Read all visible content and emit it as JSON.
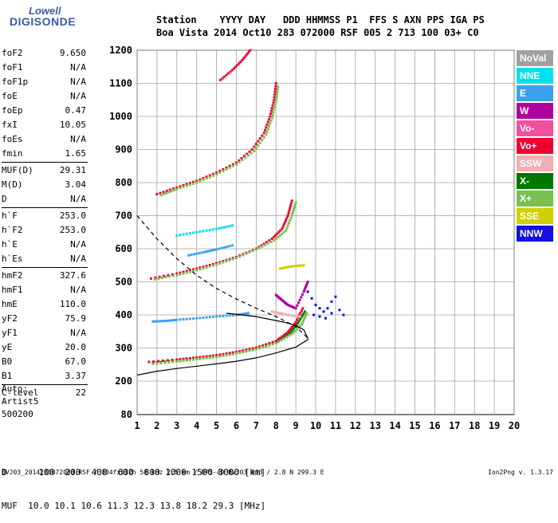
{
  "logo": {
    "top": "Lowell",
    "bottom": "DIGISONDE"
  },
  "header": {
    "line1": "Station    YYYY DAY   DDD HHMMSS P1  FFS S AXN PPS IGA PS",
    "line2": "Boa Vista 2014 Oct10 283 072000 RSF 005 2 713 100 03+ C0"
  },
  "params": [
    {
      "group": [
        {
          "label": "foF2",
          "value": "9.650"
        },
        {
          "label": "foF1",
          "value": "N/A"
        },
        {
          "label": "foF1p",
          "value": "N/A"
        },
        {
          "label": "foE",
          "value": "N/A"
        },
        {
          "label": "foEp",
          "value": "0.47"
        },
        {
          "label": "fxI",
          "value": "10.05"
        },
        {
          "label": "foEs",
          "value": "N/A"
        },
        {
          "label": "fmin",
          "value": "1.65"
        }
      ]
    },
    {
      "group": [
        {
          "label": "MUF(D)",
          "value": "29.31"
        },
        {
          "label": "M(D)",
          "value": "3.04"
        },
        {
          "label": "D",
          "value": "N/A"
        }
      ]
    },
    {
      "group": [
        {
          "label": "h`F",
          "value": "253.0"
        },
        {
          "label": "h`F2",
          "value": "253.0"
        },
        {
          "label": "h`E",
          "value": "N/A"
        },
        {
          "label": "h`Es",
          "value": "N/A"
        }
      ]
    },
    {
      "group": [
        {
          "label": "hmF2",
          "value": "327.6"
        },
        {
          "label": "hmF1",
          "value": "N/A"
        },
        {
          "label": "hmE",
          "value": "110.0"
        },
        {
          "label": "yF2",
          "value": "75.9"
        },
        {
          "label": "yF1",
          "value": "N/A"
        },
        {
          "label": "yE",
          "value": "20.0"
        },
        {
          "label": "B0",
          "value": "67.0"
        },
        {
          "label": "B1",
          "value": "3.37"
        }
      ]
    },
    {
      "group": [
        {
          "label": "C-level",
          "value": "22"
        }
      ]
    }
  ],
  "notes": [
    "Auto:",
    "Artist5",
    "500200"
  ],
  "legend": [
    {
      "label": "NoVal",
      "color": "#a0a0a0"
    },
    {
      "label": "NNE",
      "color": "#00e0f0"
    },
    {
      "label": "E",
      "color": "#3ca0f0"
    },
    {
      "label": "W",
      "color": "#b000a0"
    },
    {
      "label": "Vo-",
      "color": "#f050a0"
    },
    {
      "label": "Vo+",
      "color": "#f00030"
    },
    {
      "label": "SSW",
      "color": "#f0b0b0"
    },
    {
      "label": "X-",
      "color": "#007800"
    },
    {
      "label": "X+",
      "color": "#78c050"
    },
    {
      "label": "SSE",
      "color": "#d0d000"
    },
    {
      "label": "NNW",
      "color": "#1010e0"
    }
  ],
  "bottom": {
    "d_line": "D      100  200  400  600  800 1000 1500 3000 [km]",
    "muf_line": "MUF  10.0 10.1 10.6 11.3 12.3 13.8 18.2 29.3 [MHz]"
  },
  "footer": {
    "file": "BVJ03_2014283072000.RSF / 384fx512h 50 kHz 2.5 km / DPS-4D BVJ03 003 / 2.8 N 299.3 E",
    "version": "Ion2Png v. 1.3.17"
  },
  "chart_data": {
    "type": "scatter",
    "xlim": [
      1,
      20
    ],
    "ylim": [
      80,
      1200
    ],
    "x_ticks": [
      1,
      2,
      3,
      4,
      5,
      6,
      7,
      8,
      9,
      10,
      11,
      12,
      13,
      14,
      15,
      16,
      17,
      18,
      19,
      20
    ],
    "y_ticks": [
      80,
      200,
      300,
      400,
      500,
      600,
      700,
      800,
      900,
      1000,
      1100,
      1200
    ],
    "grid": true,
    "traces": [
      {
        "name": "X-",
        "color": "#007800",
        "points": [
          [
            1.8,
            255
          ],
          [
            3,
            262
          ],
          [
            4,
            268
          ],
          [
            5,
            275
          ],
          [
            6,
            285
          ],
          [
            7,
            298
          ],
          [
            8,
            318
          ],
          [
            8.7,
            345
          ],
          [
            9.1,
            375
          ],
          [
            9.45,
            410
          ]
        ]
      },
      {
        "name": "Vo+",
        "color": "#f00030",
        "points": [
          [
            1.6,
            258
          ],
          [
            3,
            265
          ],
          [
            4,
            271
          ],
          [
            5,
            278
          ],
          [
            6,
            288
          ],
          [
            7,
            301
          ],
          [
            8,
            321
          ],
          [
            8.6,
            348
          ],
          [
            9.0,
            378
          ],
          [
            9.35,
            420
          ]
        ]
      },
      {
        "name": "X+",
        "color": "#78c050",
        "points": [
          [
            1.8,
            252
          ],
          [
            3,
            259
          ],
          [
            4,
            266
          ],
          [
            5,
            273
          ],
          [
            6,
            283
          ],
          [
            7,
            296
          ],
          [
            8,
            314
          ],
          [
            8.8,
            342
          ],
          [
            9.3,
            372
          ],
          [
            9.55,
            405
          ]
        ]
      },
      {
        "name": "Vo+",
        "color": "#f00030",
        "points": [
          [
            1.7,
            510
          ],
          [
            3,
            525
          ],
          [
            4,
            540
          ],
          [
            5,
            556
          ],
          [
            6,
            575
          ],
          [
            7,
            600
          ],
          [
            7.8,
            630
          ],
          [
            8.3,
            660
          ],
          [
            8.6,
            700
          ],
          [
            8.8,
            745
          ]
        ]
      },
      {
        "name": "X+",
        "color": "#78c050",
        "points": [
          [
            1.9,
            508
          ],
          [
            3,
            520
          ],
          [
            4,
            535
          ],
          [
            5,
            552
          ],
          [
            6,
            572
          ],
          [
            7,
            598
          ],
          [
            7.9,
            625
          ],
          [
            8.5,
            655
          ],
          [
            8.8,
            700
          ],
          [
            9.0,
            740
          ]
        ]
      },
      {
        "name": "Vo+",
        "color": "#f00030",
        "points": [
          [
            2.0,
            765
          ],
          [
            3,
            785
          ],
          [
            4,
            805
          ],
          [
            5,
            830
          ],
          [
            6,
            860
          ],
          [
            6.8,
            900
          ],
          [
            7.4,
            950
          ],
          [
            7.7,
            1000
          ],
          [
            7.9,
            1050
          ],
          [
            8.0,
            1100
          ]
        ]
      },
      {
        "name": "X+",
        "color": "#78c050",
        "points": [
          [
            2.2,
            762
          ],
          [
            3,
            780
          ],
          [
            4,
            800
          ],
          [
            5,
            825
          ],
          [
            6,
            855
          ],
          [
            6.9,
            895
          ],
          [
            7.5,
            945
          ],
          [
            7.8,
            995
          ],
          [
            8.0,
            1045
          ],
          [
            8.1,
            1090
          ]
        ]
      },
      {
        "name": "Vo+",
        "color": "#f00030",
        "points": [
          [
            5.2,
            1110
          ],
          [
            5.8,
            1140
          ],
          [
            6.3,
            1170
          ],
          [
            6.7,
            1200
          ]
        ]
      },
      {
        "name": "E",
        "color": "#3ca0f0",
        "points": [
          [
            1.8,
            380
          ],
          [
            2.5,
            382
          ],
          [
            3,
            385
          ],
          [
            4,
            390
          ],
          [
            5,
            395
          ],
          [
            6,
            400
          ],
          [
            6.6,
            405
          ]
        ]
      },
      {
        "name": "E",
        "color": "#3ca0f0",
        "points": [
          [
            3.6,
            580
          ],
          [
            4.4,
            590
          ],
          [
            5,
            598
          ],
          [
            5.8,
            610
          ]
        ]
      },
      {
        "name": "NNE",
        "color": "#00e0f0",
        "points": [
          [
            3.0,
            640
          ],
          [
            4.0,
            650
          ],
          [
            5.0,
            660
          ],
          [
            5.8,
            670
          ]
        ]
      },
      {
        "name": "SSE",
        "color": "#d0d000",
        "points": [
          [
            8.2,
            540
          ],
          [
            8.6,
            545
          ],
          [
            9.0,
            548
          ],
          [
            9.4,
            550
          ]
        ]
      },
      {
        "name": "NNW",
        "color": "#1010e0",
        "points": [
          [
            9.6,
            470
          ],
          [
            9.8,
            450
          ],
          [
            10.0,
            430
          ],
          [
            10.2,
            420
          ],
          [
            10.4,
            410
          ],
          [
            10.6,
            420
          ],
          [
            10.8,
            440
          ],
          [
            11.0,
            455
          ],
          [
            11.2,
            415
          ],
          [
            11.4,
            400
          ],
          [
            9.9,
            400
          ],
          [
            10.2,
            395
          ],
          [
            10.5,
            390
          ],
          [
            10.8,
            405
          ]
        ]
      },
      {
        "name": "W",
        "color": "#b000a0",
        "points": [
          [
            8.0,
            460
          ],
          [
            8.3,
            445
          ],
          [
            8.6,
            430
          ],
          [
            9.0,
            420
          ],
          [
            9.4,
            470
          ],
          [
            9.6,
            500
          ]
        ]
      },
      {
        "name": "SSW",
        "color": "#f0b0b0",
        "points": [
          [
            7.8,
            410
          ],
          [
            8.2,
            405
          ],
          [
            8.6,
            400
          ],
          [
            9.2,
            395
          ]
        ]
      }
    ],
    "profile_dashed": [
      [
        1,
        700
      ],
      [
        2,
        630
      ],
      [
        3,
        570
      ],
      [
        4,
        520
      ],
      [
        5,
        480
      ],
      [
        6,
        448
      ],
      [
        7,
        420
      ],
      [
        8,
        395
      ],
      [
        9,
        365
      ],
      [
        9.6,
        330
      ]
    ],
    "profile_solid": [
      [
        1,
        218
      ],
      [
        2,
        230
      ],
      [
        3,
        238
      ],
      [
        4,
        245
      ],
      [
        5,
        252
      ],
      [
        6,
        260
      ],
      [
        7,
        270
      ],
      [
        8,
        285
      ],
      [
        9,
        303
      ],
      [
        9.6,
        325
      ],
      [
        9.6,
        330
      ],
      [
        9.4,
        355
      ],
      [
        9.0,
        368
      ],
      [
        8.4,
        378
      ],
      [
        7.0,
        395
      ],
      [
        5.5,
        405
      ]
    ]
  }
}
